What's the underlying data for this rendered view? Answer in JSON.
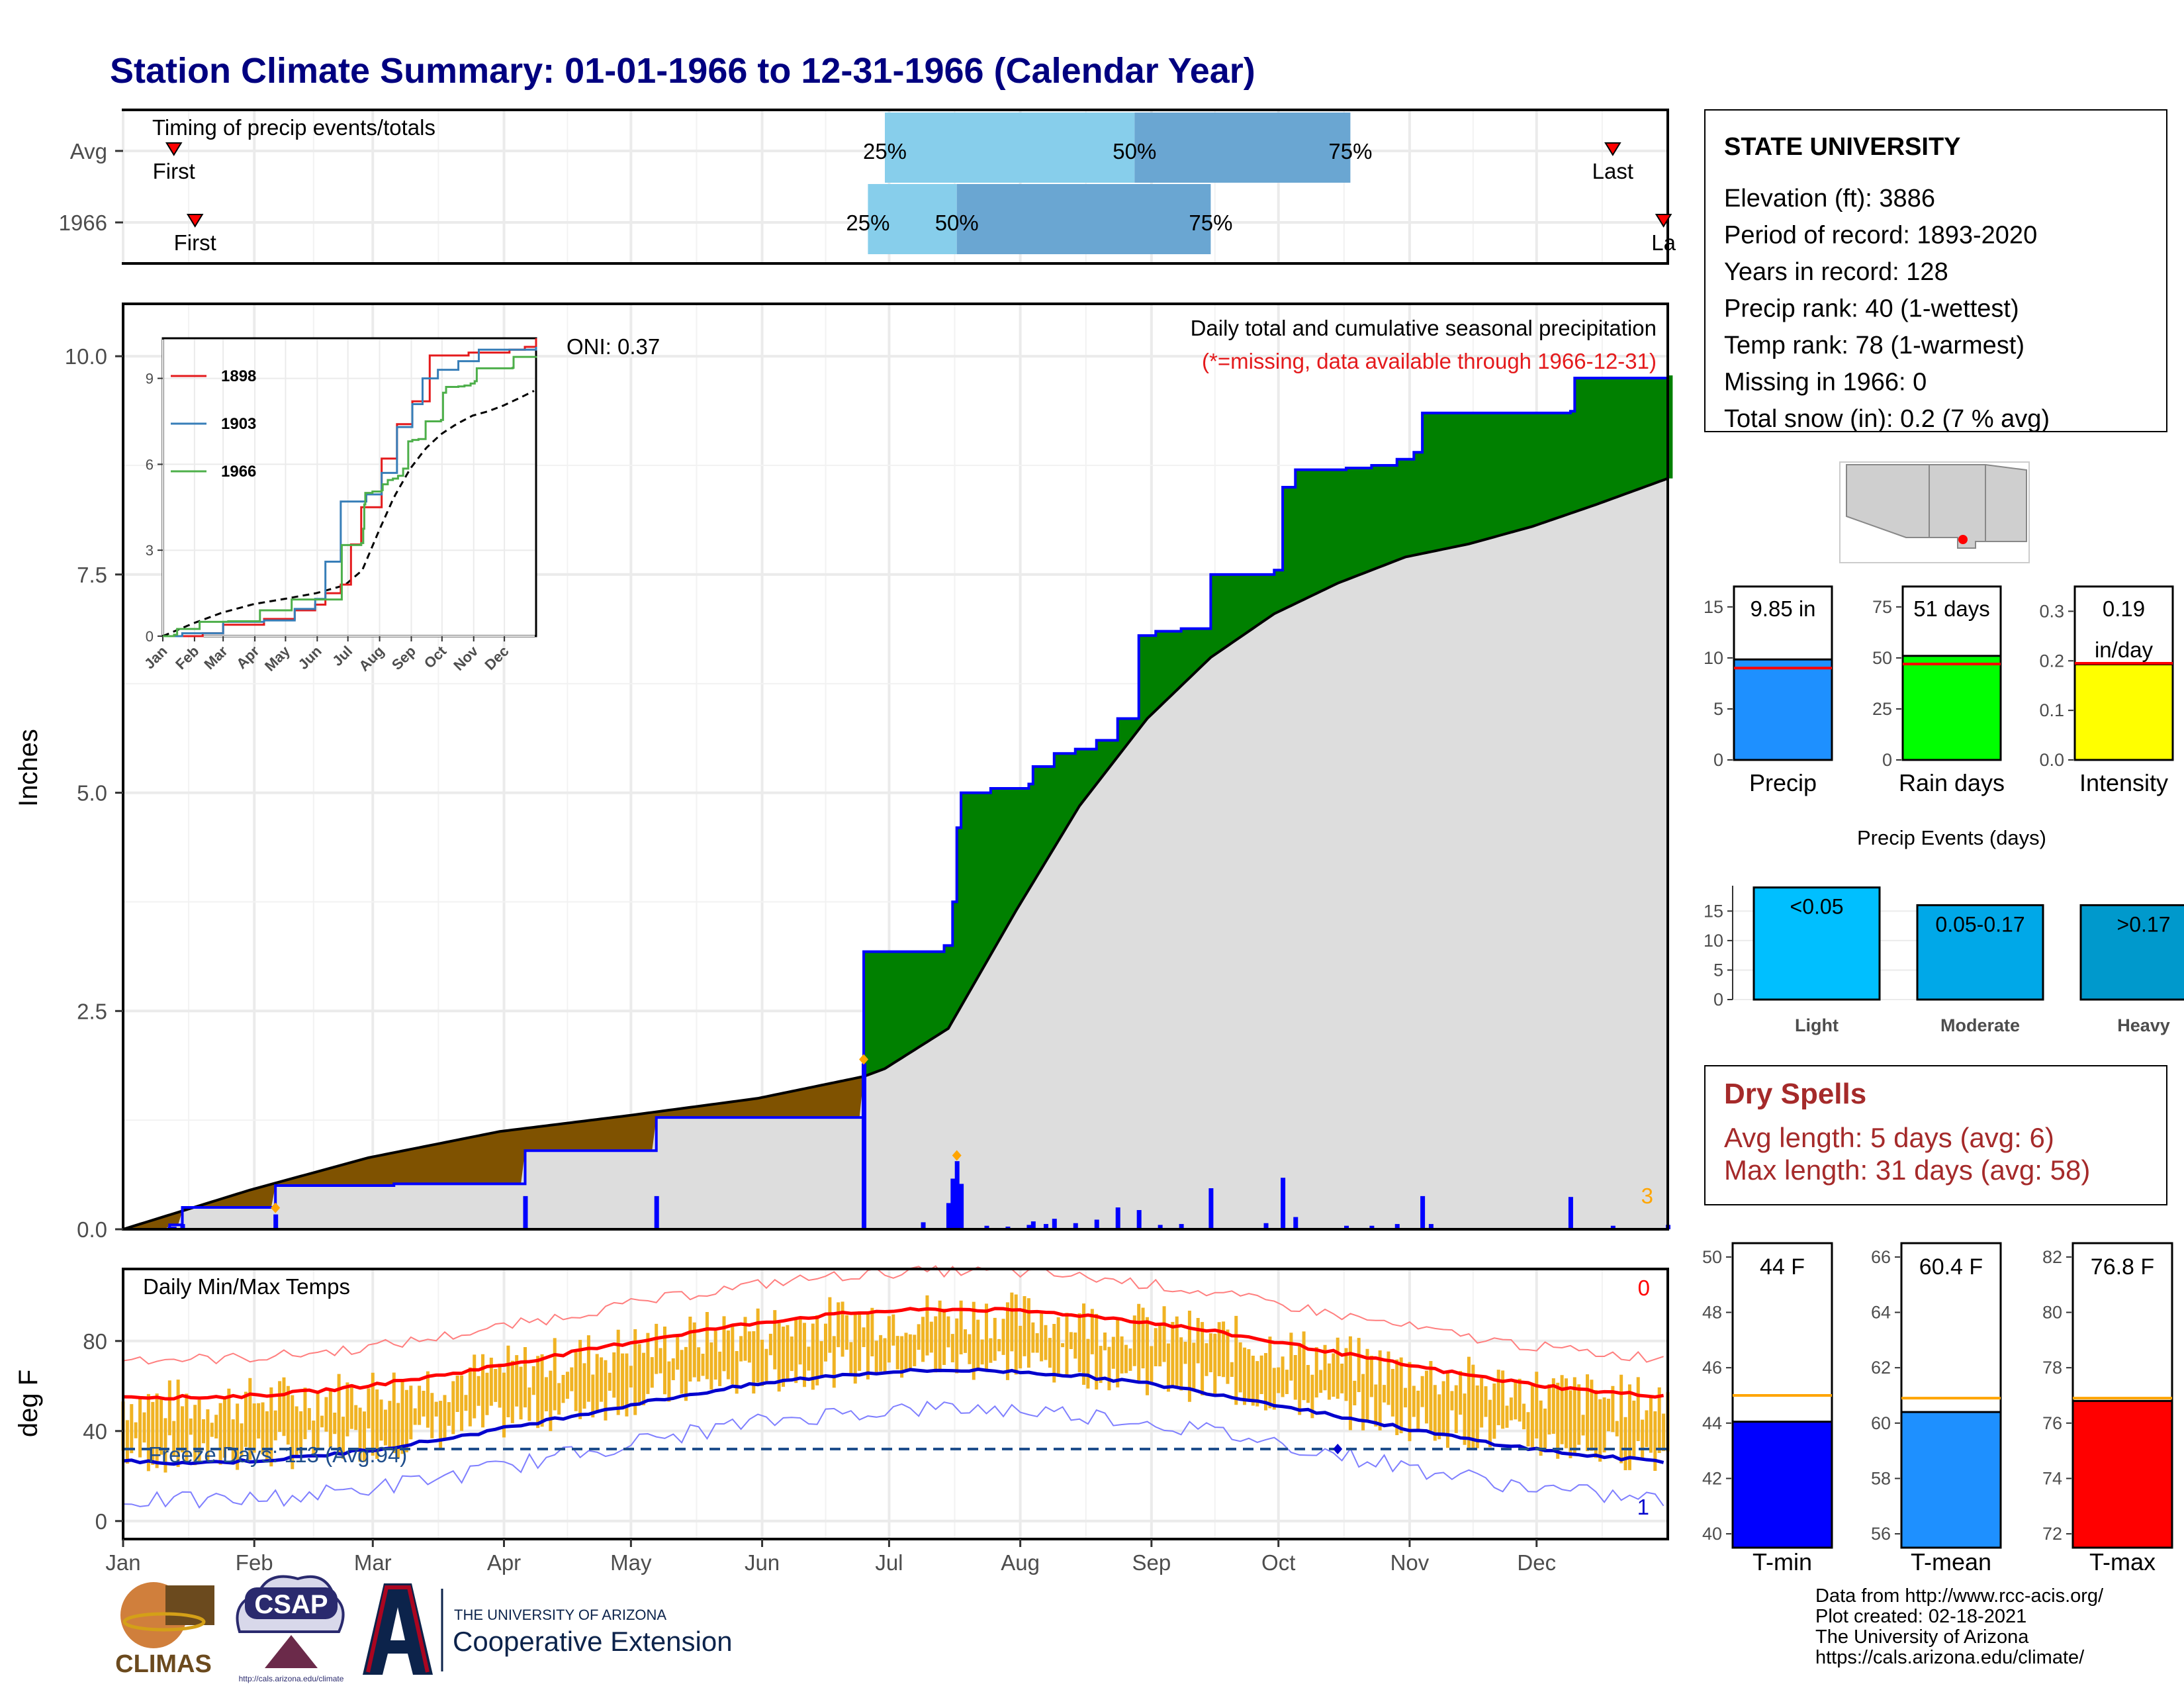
{
  "title": "Station Climate Summary: 01-01-1966 to 12-31-1966 (Calendar Year)",
  "months": [
    "Jan",
    "Feb",
    "Mar",
    "Apr",
    "May",
    "Jun",
    "Jul",
    "Aug",
    "Sep",
    "Oct",
    "Nov",
    "Dec"
  ],
  "timing_panel": {
    "label": "Timing of precip events/totals",
    "rows": [
      {
        "name": "Avg",
        "first_label": "First",
        "last_label": "Last",
        "first_doy": 13,
        "last_doy": 353,
        "q25_doy": 181,
        "q50_doy": 240,
        "q75_doy": 291,
        "labels": [
          "25%",
          "50%",
          "75%"
        ]
      },
      {
        "name": "1966",
        "first_label": "First",
        "last_label": "La",
        "first_doy": 18,
        "last_doy": 365,
        "q25_doy": 177,
        "q50_doy": 198,
        "q75_doy": 258,
        "labels": [
          "25%",
          "50%",
          "75%"
        ]
      }
    ]
  },
  "station": {
    "name": "STATE UNIVERSITY",
    "lines": [
      "Elevation (ft): 3886",
      "Period of record: 1893-2020",
      "Years in record: 128",
      "Precip rank: 40 (1-wettest)",
      "Temp rank: 78 (1-warmest)",
      "Missing in 1966: 0",
      "Total snow (in): 0.2 (7 % avg)"
    ]
  },
  "precip_panel": {
    "ylabel": "Inches",
    "yticks": [
      "0.0",
      "2.5",
      "5.0",
      "7.5",
      "10.0"
    ],
    "label1": "Daily total and cumulative seasonal precipitation",
    "label2": "(*=missing, data available through 1966-12-31)",
    "oni": "ONI: 0.37",
    "right_count": "3"
  },
  "inset": {
    "series": [
      "1898",
      "1903",
      "1966"
    ],
    "colors": [
      "#e41a1c",
      "#377eb8",
      "#4daf4a"
    ],
    "yticks": [
      "0",
      "3",
      "6",
      "9"
    ],
    "xticks": [
      "Jan",
      "Feb",
      "Mar",
      "Apr",
      "May",
      "Jun",
      "Jul",
      "Aug",
      "Sep",
      "Oct",
      "Nov",
      "Dec"
    ]
  },
  "temp_panel": {
    "ylabel": "deg F",
    "label": "Daily Min/Max Temps",
    "freeze": "Freeze Days: 113 (Avg:94)",
    "right_top": "0",
    "right_bottom": "1",
    "yticks": [
      "0",
      "40",
      "80"
    ]
  },
  "mini_bars": [
    {
      "xlabel": "Precip",
      "value_label": "9.85 in",
      "value": 9.85,
      "avg": 9.0,
      "max": 17,
      "yticks": [
        "0",
        "5",
        "10",
        "15"
      ],
      "color": "#1e90ff"
    },
    {
      "xlabel": "Rain days",
      "value_label": "51 days",
      "value": 51,
      "avg": 47,
      "max": 85,
      "yticks": [
        "0",
        "25",
        "50",
        "75"
      ],
      "color": "#00ff00"
    },
    {
      "xlabel": "Intensity",
      "value_label": "0.19",
      "value_label2": "in/day",
      "value": 0.193,
      "avg": 0.195,
      "max": 0.35,
      "yticks": [
        "0.0",
        "0.1",
        "0.2",
        "0.3"
      ],
      "color": "#ffff00"
    }
  ],
  "precip_events": {
    "title": "Precip Events (days)",
    "categories": [
      "Light",
      "Moderate",
      "Heavy"
    ],
    "labels": [
      "<0.05",
      "0.05-0.17",
      ">0.17"
    ],
    "values": [
      19,
      16,
      16
    ],
    "colors": [
      "#00bfff",
      "#00a8e8",
      "#0099cc"
    ],
    "yticks": [
      "0",
      "5",
      "10",
      "15"
    ]
  },
  "dry_spells": {
    "title": "Dry Spells",
    "line1": "Avg length: 5 days (avg: 6)",
    "line2": "Max length: 31 days (avg: 58)"
  },
  "temp_bars": [
    {
      "xlabel": "T-min",
      "value_label": "44 F",
      "value": 44.05,
      "avg": 45.0,
      "ymin": 39.5,
      "ymax": 50.5,
      "yticks": [
        "40",
        "42",
        "44",
        "46",
        "48",
        "50"
      ],
      "color": "#0000ff"
    },
    {
      "xlabel": "T-mean",
      "value_label": "60.4 F",
      "value": 60.4,
      "avg": 60.9,
      "ymin": 55.5,
      "ymax": 66.5,
      "yticks": [
        "56",
        "58",
        "60",
        "62",
        "64",
        "66"
      ],
      "color": "#1e90ff"
    },
    {
      "xlabel": "T-max",
      "value_label": "76.8 F",
      "value": 76.8,
      "avg": 76.9,
      "ymin": 71.5,
      "ymax": 82.5,
      "yticks": [
        "72",
        "74",
        "76",
        "78",
        "80",
        "82"
      ],
      "color": "#ff0000"
    }
  ],
  "footer": {
    "lines": [
      "Data from http://www.rcc-acis.org/",
      "Plot created: 02-18-2021",
      "The University of Arizona",
      "https://cals.arizona.edu/climate/"
    ],
    "logo_climas": "CLIMAS",
    "logo_csap": "CSAP",
    "logo_csap_url": "http://cals.arizona.edu/climate",
    "ua_small": "THE UNIVERSITY OF ARIZONA",
    "ua_big": "Cooperative Extension"
  },
  "chart_data": {
    "type": "area",
    "title": "Station Climate Summary: 01-01-1966 to 12-31-1966 (Calendar Year)",
    "ylabel": "Inches",
    "ylim": [
      0,
      10.6
    ],
    "cumulative_1966": [
      [
        1,
        0
      ],
      [
        12,
        0.05
      ],
      [
        15,
        0.25
      ],
      [
        36,
        0.25
      ],
      [
        37,
        0.5
      ],
      [
        64,
        0.5
      ],
      [
        65,
        0.52
      ],
      [
        95,
        0.52
      ],
      [
        96,
        0.9
      ],
      [
        126,
        0.9
      ],
      [
        127,
        1.28
      ],
      [
        175,
        1.28
      ],
      [
        176,
        3.18
      ],
      [
        195,
        3.25
      ],
      [
        197,
        3.75
      ],
      [
        198,
        4.6
      ],
      [
        199,
        5.0
      ],
      [
        206,
        5.05
      ],
      [
        215,
        5.1
      ],
      [
        216,
        5.3
      ],
      [
        221,
        5.45
      ],
      [
        226,
        5.5
      ],
      [
        231,
        5.6
      ],
      [
        236,
        5.85
      ],
      [
        241,
        6.8
      ],
      [
        245,
        6.85
      ],
      [
        251,
        6.88
      ],
      [
        258,
        7.5
      ],
      [
        273,
        7.55
      ],
      [
        275,
        8.5
      ],
      [
        278,
        8.7
      ],
      [
        290,
        8.72
      ],
      [
        296,
        8.75
      ],
      [
        302,
        8.82
      ],
      [
        306,
        8.9
      ],
      [
        308,
        9.35
      ],
      [
        343,
        9.37
      ],
      [
        344,
        9.75
      ],
      [
        366,
        9.78
      ]
    ],
    "cumulative_avg": [
      [
        1,
        0
      ],
      [
        31,
        0.45
      ],
      [
        59,
        0.82
      ],
      [
        90,
        1.12
      ],
      [
        120,
        1.3
      ],
      [
        151,
        1.5
      ],
      [
        176,
        1.75
      ],
      [
        181,
        1.84
      ],
      [
        196,
        2.3
      ],
      [
        212,
        3.65
      ],
      [
        227,
        4.85
      ],
      [
        243,
        5.85
      ],
      [
        258,
        6.55
      ],
      [
        273,
        7.05
      ],
      [
        288,
        7.4
      ],
      [
        304,
        7.7
      ],
      [
        319,
        7.85
      ],
      [
        334,
        8.05
      ],
      [
        349,
        8.3
      ],
      [
        366,
        8.6
      ]
    ],
    "daily_precip": [
      [
        12,
        0.03
      ],
      [
        13,
        0.03
      ],
      [
        15,
        0.06
      ],
      [
        37,
        0.17
      ],
      [
        96,
        0.38
      ],
      [
        127,
        0.38
      ],
      [
        176,
        1.9
      ],
      [
        190,
        0.08
      ],
      [
        196,
        0.3
      ],
      [
        197,
        0.58
      ],
      [
        198,
        0.78
      ],
      [
        199,
        0.52
      ],
      [
        205,
        0.04
      ],
      [
        210,
        0.03
      ],
      [
        215,
        0.05
      ],
      [
        216,
        0.09
      ],
      [
        219,
        0.06
      ],
      [
        221,
        0.12
      ],
      [
        226,
        0.07
      ],
      [
        231,
        0.11
      ],
      [
        236,
        0.25
      ],
      [
        241,
        0.22
      ],
      [
        246,
        0.05
      ],
      [
        251,
        0.06
      ],
      [
        258,
        0.47
      ],
      [
        271,
        0.07
      ],
      [
        275,
        0.59
      ],
      [
        278,
        0.14
      ],
      [
        290,
        0.04
      ],
      [
        296,
        0.04
      ],
      [
        302,
        0.06
      ],
      [
        308,
        0.38
      ],
      [
        310,
        0.06
      ],
      [
        343,
        0.37
      ],
      [
        353,
        0.04
      ],
      [
        366,
        0.05
      ]
    ],
    "temp_max_avg_endpoints": [
      55,
      94,
      55
    ],
    "temp_min_avg_endpoints": [
      26,
      67,
      26
    ],
    "temp_ylim": [
      -8,
      112
    ]
  }
}
